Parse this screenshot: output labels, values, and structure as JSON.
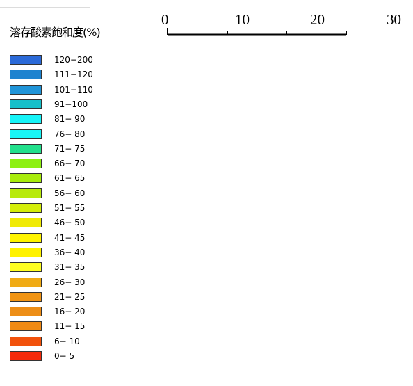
{
  "legend": {
    "title": "溶存酸素飽和度(%)",
    "items": [
      {
        "range": "120−200",
        "color": "#2b6ad8"
      },
      {
        "range": "111−120",
        "color": "#1e83cf"
      },
      {
        "range": "101−110",
        "color": "#1f94d8"
      },
      {
        "range": "91−100",
        "color": "#16c0c9"
      },
      {
        "range": "81− 90",
        "color": "#16f4f8"
      },
      {
        "range": "76− 80",
        "color": "#19f5f5"
      },
      {
        "range": "71− 75",
        "color": "#22e08c"
      },
      {
        "range": "66− 70",
        "color": "#8df012"
      },
      {
        "range": "61− 65",
        "color": "#a8ec0c"
      },
      {
        "range": "56− 60",
        "color": "#b8ea0c"
      },
      {
        "range": "51− 55",
        "color": "#d4ee0a"
      },
      {
        "range": "46− 50",
        "color": "#f0ea05"
      },
      {
        "range": "41− 45",
        "color": "#fff400"
      },
      {
        "range": "36− 40",
        "color": "#fff200"
      },
      {
        "range": "31− 35",
        "color": "#ffff22"
      },
      {
        "range": "26− 30",
        "color": "#f0ab14"
      },
      {
        "range": "21− 25",
        "color": "#f19414"
      },
      {
        "range": "16− 20",
        "color": "#ed8e17"
      },
      {
        "range": "11− 15",
        "color": "#f08a14"
      },
      {
        "range": "6− 10",
        "color": "#f2520c"
      },
      {
        "range": "0− 5",
        "color": "#f42a0a"
      }
    ]
  },
  "scale_bar": {
    "labels": [
      "0",
      "10",
      "20",
      "30"
    ],
    "values": [
      0,
      10,
      20,
      30
    ]
  }
}
